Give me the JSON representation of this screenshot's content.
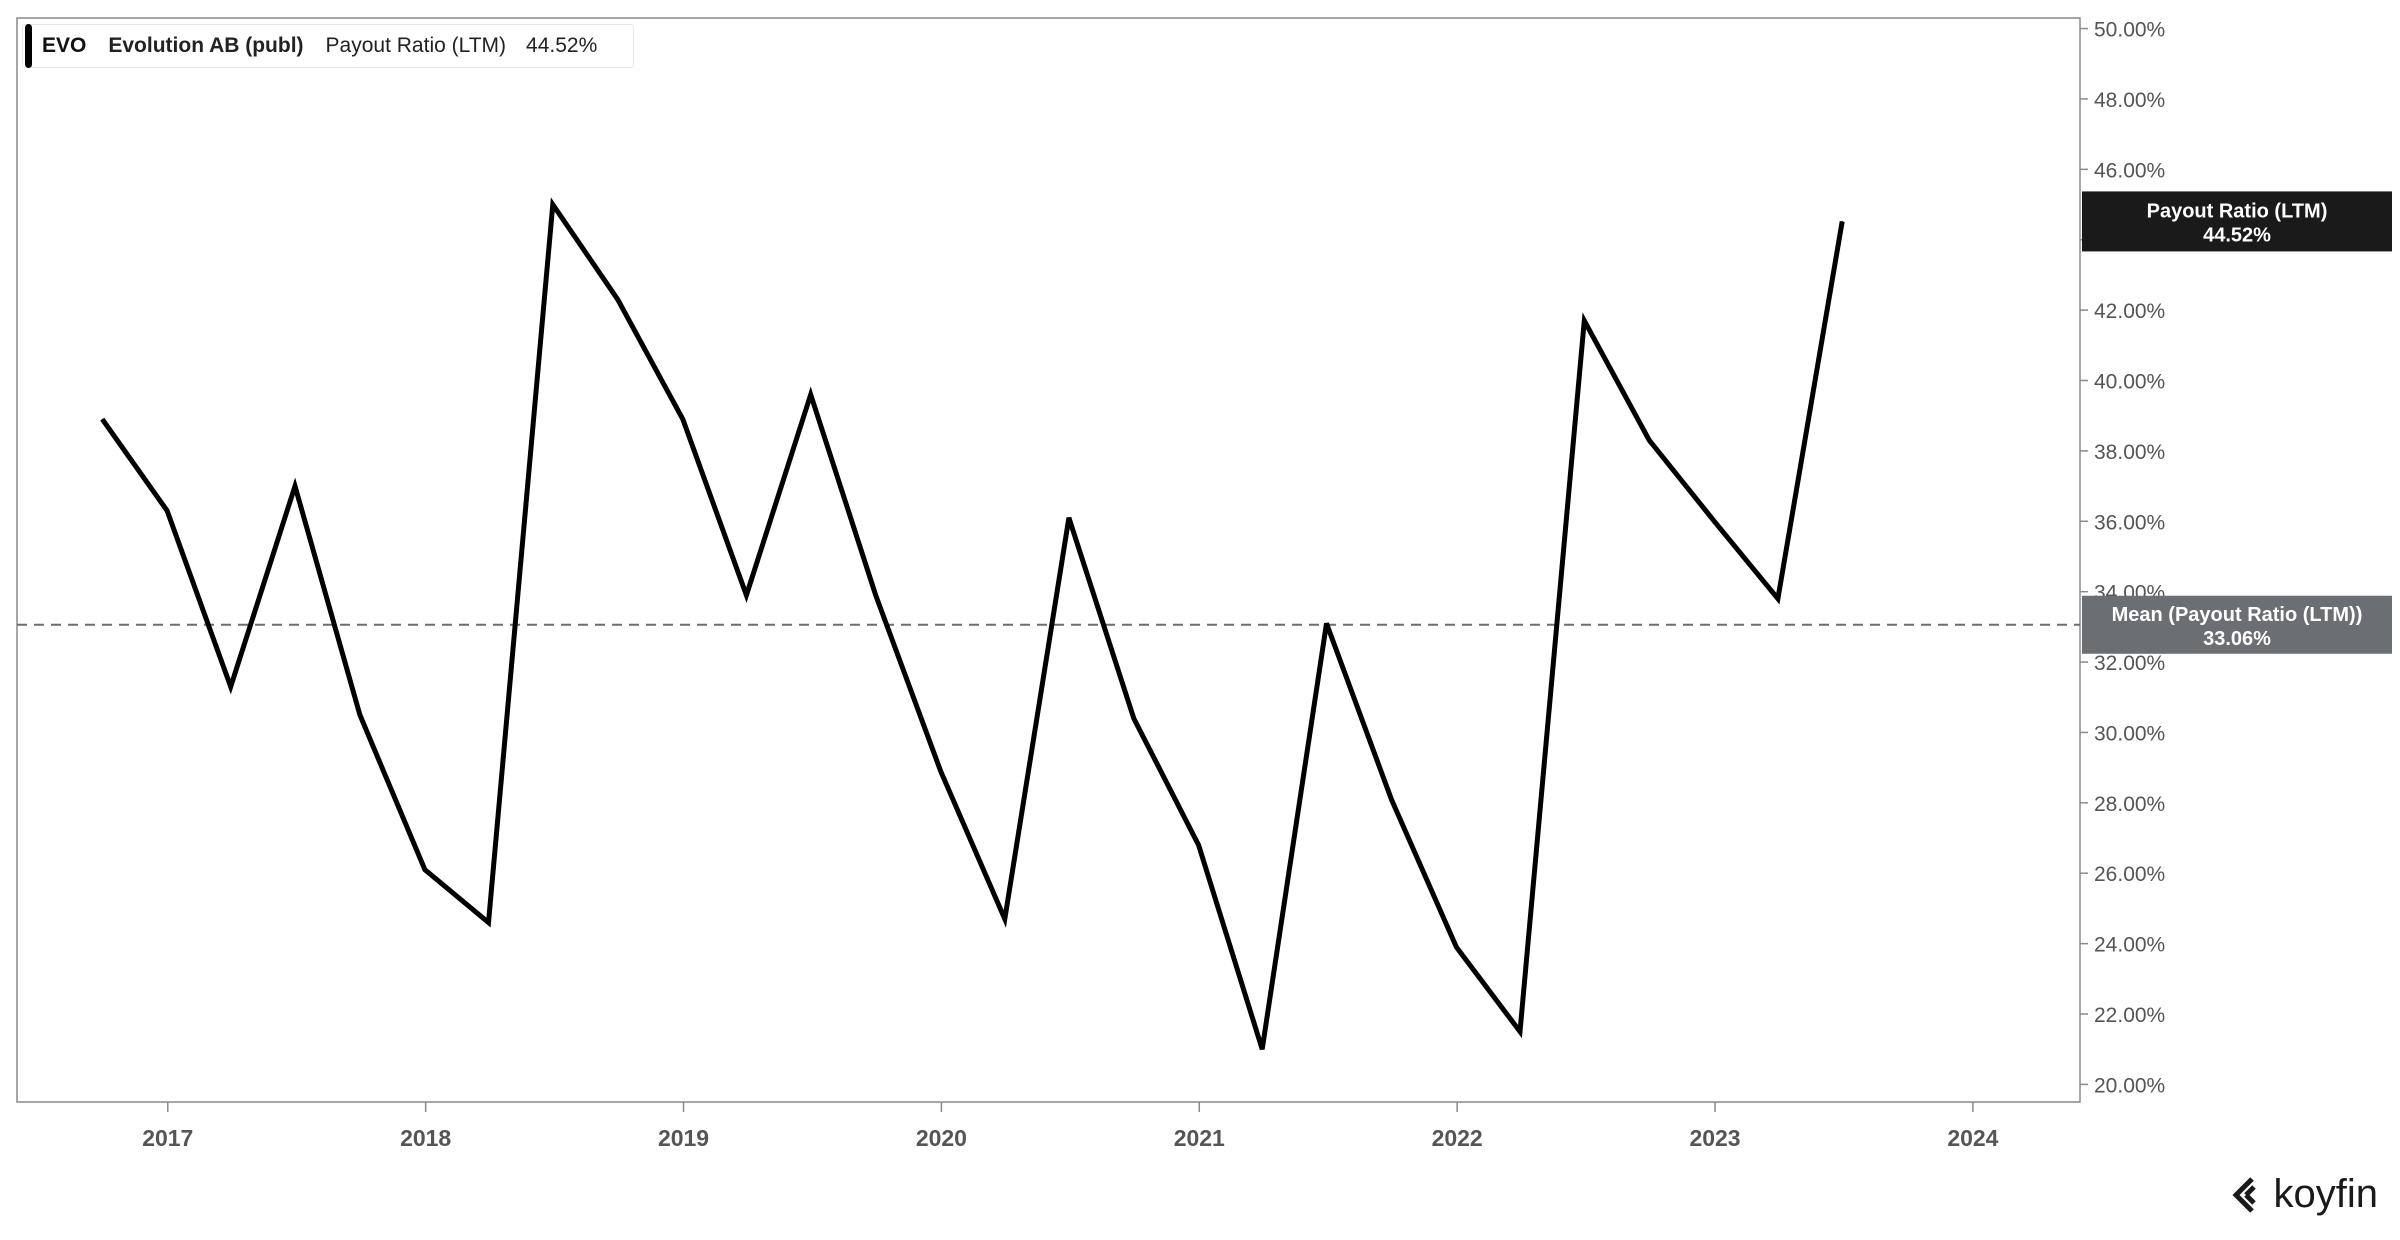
{
  "legend": {
    "ticker": "EVO",
    "company": "Evolution AB (publ)",
    "metric": "Payout Ratio (LTM)",
    "value": "44.52%",
    "color": "#000000"
  },
  "logo": {
    "text": "koyfin",
    "icon": "koyfin-logo-icon"
  },
  "chart_data": {
    "type": "line",
    "title": "",
    "xlabel": "",
    "ylabel": "",
    "x_ticks": [
      "2017",
      "2018",
      "2019",
      "2020",
      "2021",
      "2022",
      "2023",
      "2024"
    ],
    "y_ticks": [
      "20.00%",
      "22.00%",
      "24.00%",
      "26.00%",
      "28.00%",
      "30.00%",
      "32.00%",
      "34.00%",
      "36.00%",
      "38.00%",
      "40.00%",
      "42.00%",
      "44.00%",
      "46.00%",
      "48.00%",
      "50.00%"
    ],
    "ylim": [
      19.5,
      50.3
    ],
    "xlim": [
      "2016-06",
      "2024-06"
    ],
    "grid": false,
    "legend_position": "top-left",
    "series": [
      {
        "name": "Payout Ratio (LTM)",
        "color": "#000000",
        "x": [
          "2016-09-30",
          "2016-12-31",
          "2017-03-31",
          "2017-06-30",
          "2017-09-30",
          "2017-12-31",
          "2018-03-31",
          "2018-06-30",
          "2018-09-30",
          "2018-12-31",
          "2019-03-31",
          "2019-06-30",
          "2019-09-30",
          "2019-12-31",
          "2020-03-31",
          "2020-06-30",
          "2020-09-30",
          "2020-12-31",
          "2021-03-31",
          "2021-06-30",
          "2021-09-30",
          "2021-12-31",
          "2022-03-31",
          "2022-06-30",
          "2022-09-30",
          "2022-12-31",
          "2023-03-31",
          "2023-06-30"
        ],
        "values": [
          38.9,
          36.3,
          31.3,
          37.0,
          30.5,
          26.1,
          24.6,
          45.0,
          42.3,
          38.9,
          33.9,
          39.6,
          33.9,
          28.9,
          24.7,
          36.1,
          30.4,
          26.8,
          21.0,
          33.1,
          28.1,
          23.9,
          21.5,
          41.7,
          38.3,
          36.0,
          33.8,
          44.52
        ]
      }
    ],
    "reference_lines": [
      {
        "name": "Mean (Payout Ratio (LTM))",
        "value": 33.06,
        "label_value": "33.06%",
        "style": "dashed",
        "color": "#6b6e72"
      }
    ],
    "last_value_tag": {
      "label": "Payout Ratio (LTM)",
      "value": 44.52,
      "label_value": "44.52%",
      "color": "#1a1a1a"
    }
  }
}
